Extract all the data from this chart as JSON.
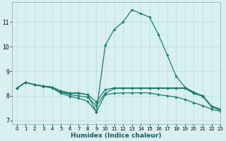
{
  "xlabel": "Humidex (Indice chaleur)",
  "bg_color": "#d8f0f0",
  "grid_color": "#b8dede",
  "line_color": "#1a7a6e",
  "xlim": [
    -0.5,
    23
  ],
  "ylim": [
    6.85,
    11.8
  ],
  "yticks": [
    7,
    8,
    9,
    10,
    11
  ],
  "xticks": [
    0,
    1,
    2,
    3,
    4,
    5,
    6,
    7,
    8,
    9,
    10,
    11,
    12,
    13,
    14,
    15,
    16,
    17,
    18,
    19,
    20,
    21,
    22,
    23
  ],
  "series": [
    {
      "x": [
        0,
        1,
        2,
        3,
        4,
        5,
        6,
        7,
        8,
        9,
        10,
        11,
        12,
        13,
        14,
        15,
        16,
        17,
        18,
        19,
        20,
        21,
        22,
        23
      ],
      "y": [
        8.3,
        8.55,
        8.45,
        8.4,
        8.35,
        8.15,
        8.1,
        8.1,
        8.05,
        7.35,
        10.05,
        10.7,
        11.0,
        11.5,
        11.35,
        11.2,
        10.5,
        9.65,
        8.8,
        8.35,
        8.15,
        8.0,
        7.58,
        7.45
      ]
    },
    {
      "x": [
        0,
        1,
        2,
        3,
        4,
        5,
        6,
        7,
        8,
        9,
        10,
        11,
        12,
        13,
        14,
        15,
        16,
        17,
        18,
        19,
        20,
        21,
        22,
        23
      ],
      "y": [
        8.3,
        8.55,
        8.45,
        8.4,
        8.35,
        8.2,
        8.12,
        8.12,
        8.05,
        7.75,
        8.25,
        8.32,
        8.32,
        8.32,
        8.32,
        8.32,
        8.32,
        8.32,
        8.32,
        8.32,
        8.12,
        8.0,
        7.58,
        7.45
      ]
    },
    {
      "x": [
        0,
        1,
        2,
        3,
        4,
        5,
        6,
        7,
        8,
        9,
        10,
        11,
        12,
        13,
        14,
        15,
        16,
        17,
        18,
        19,
        20,
        21,
        22,
        23
      ],
      "y": [
        8.3,
        8.55,
        8.45,
        8.4,
        8.35,
        8.15,
        8.05,
        8.0,
        7.95,
        7.6,
        8.1,
        8.3,
        8.3,
        8.3,
        8.3,
        8.3,
        8.3,
        8.3,
        8.3,
        8.3,
        8.1,
        7.98,
        7.55,
        7.42
      ]
    },
    {
      "x": [
        0,
        1,
        2,
        3,
        4,
        5,
        6,
        7,
        8,
        9,
        10,
        11,
        12,
        13,
        14,
        15,
        16,
        17,
        18,
        19,
        20,
        21,
        22,
        23
      ],
      "y": [
        8.3,
        8.55,
        8.45,
        8.38,
        8.32,
        8.1,
        7.98,
        7.9,
        7.78,
        7.35,
        8.05,
        8.1,
        8.12,
        8.12,
        8.12,
        8.12,
        8.05,
        8.0,
        7.95,
        7.85,
        7.72,
        7.6,
        7.45,
        7.38
      ]
    }
  ]
}
